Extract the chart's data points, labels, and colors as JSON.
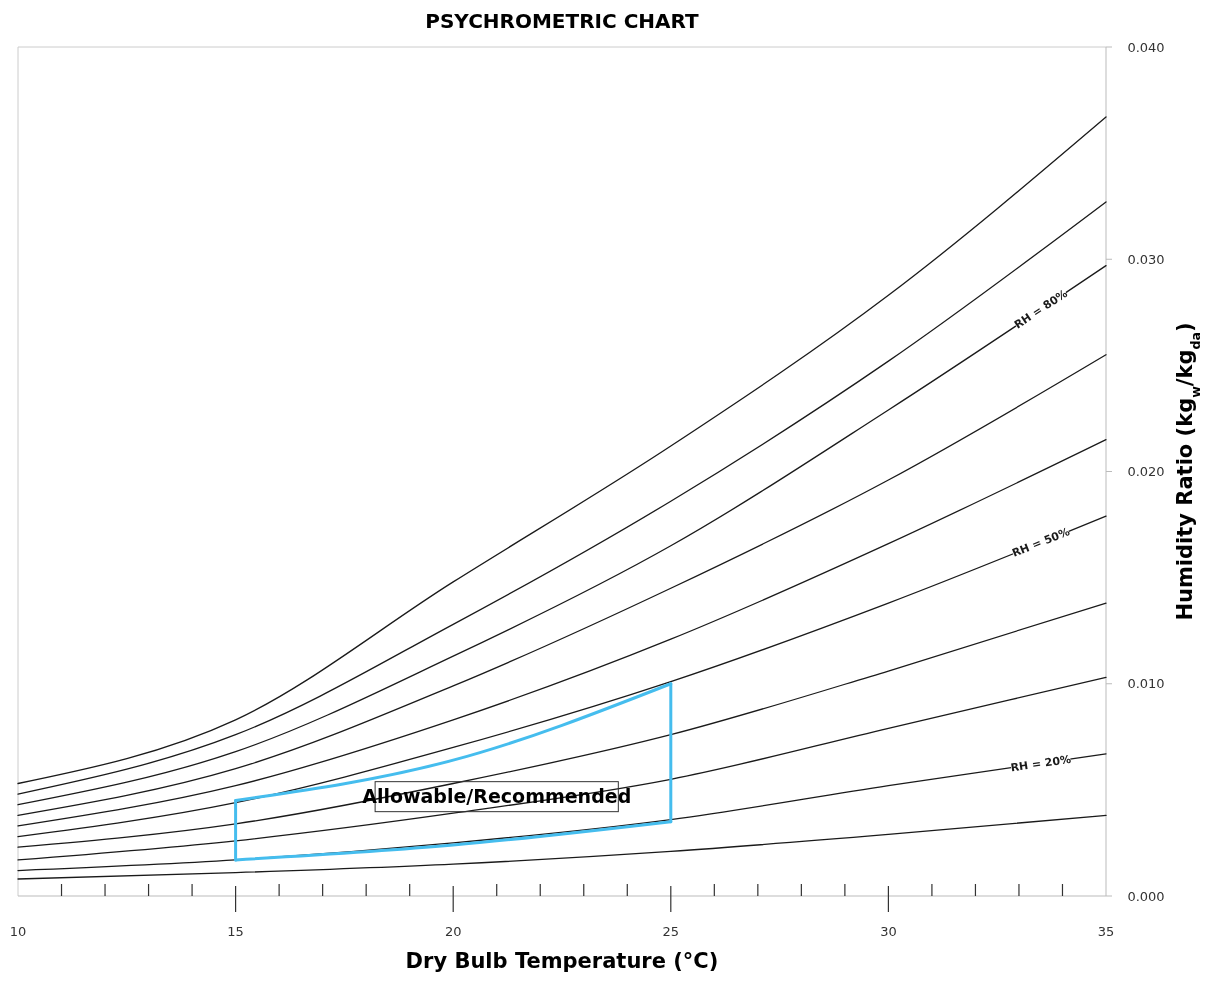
{
  "chart_data": {
    "type": "line",
    "title": "PSYCHROMETRIC  CHART",
    "xlabel": "Dry Bulb Temperature (°C)",
    "ylabel": "Humidity Ratio (kg$_{w}$/kg$_{da}$)",
    "x": [
      10,
      15,
      20,
      25,
      30,
      35
    ],
    "xlim": [
      10,
      35
    ],
    "xticks": [
      10,
      {
        "value": 11,
        "label": null
      },
      {
        "value": 12,
        "label": null
      },
      {
        "value": 13,
        "label": null
      },
      {
        "value": 14,
        "label": null
      },
      15,
      {
        "value": 16,
        "label": null
      },
      {
        "value": 17,
        "label": null
      },
      {
        "value": 18,
        "label": null
      },
      {
        "value": 19,
        "label": null
      },
      20,
      {
        "value": 21,
        "label": null
      },
      {
        "value": 22,
        "label": null
      },
      {
        "value": 23,
        "label": null
      },
      {
        "value": 24,
        "label": null
      },
      25,
      {
        "value": 26,
        "label": null
      },
      {
        "value": 27,
        "label": null
      },
      {
        "value": 28,
        "label": null
      },
      {
        "value": 29,
        "label": null
      },
      30,
      {
        "value": 31,
        "label": null
      },
      {
        "value": 32,
        "label": null
      },
      {
        "value": 33,
        "label": null
      },
      {
        "value": 34,
        "label": null
      },
      35
    ],
    "ylim": [
      0,
      0.04
    ],
    "yticks": [
      {
        "value": 0,
        "label": "0.000"
      },
      {
        "value": 0.01,
        "label": "0.010"
      },
      {
        "value": 0.02,
        "label": "0.020"
      },
      {
        "value": 0.03,
        "label": "0.030"
      },
      {
        "value": 0.04,
        "label": "0.040"
      }
    ],
    "grid": false,
    "marker": "none",
    "line_style": "solid",
    "series": [
      {
        "color": "#1a1a1a",
        "values": [
          0.0008,
          0.0011,
          0.0015,
          0.0021,
          0.0029,
          0.0038
        ]
      },
      {
        "name": "RH = 20%",
        "color": "#1a1a1a",
        "values": [
          0.0012,
          0.0017,
          0.0025,
          0.0036,
          0.0052,
          0.0067
        ]
      },
      {
        "color": "#1a1a1a",
        "values": [
          0.0017,
          0.0026,
          0.0039,
          0.0055,
          0.0079,
          0.0103
        ]
      },
      {
        "color": "#1a1a1a",
        "values": [
          0.0023,
          0.0034,
          0.0053,
          0.0076,
          0.0106,
          0.0138
        ]
      },
      {
        "name": "RH = 50%",
        "color": "#1a1a1a",
        "values": [
          0.0028,
          0.0044,
          0.007,
          0.0101,
          0.0138,
          0.0179
        ]
      },
      {
        "color": "#1a1a1a",
        "values": [
          0.0033,
          0.0052,
          0.0083,
          0.0121,
          0.0166,
          0.0215
        ]
      },
      {
        "color": "#1a1a1a",
        "values": [
          0.0038,
          0.006,
          0.0099,
          0.0145,
          0.0196,
          0.0255
        ]
      },
      {
        "name": "RH = 80%",
        "color": "#1a1a1a",
        "values": [
          0.0043,
          0.0068,
          0.0113,
          0.0165,
          0.0229,
          0.0297
        ]
      },
      {
        "color": "#1a1a1a",
        "values": [
          0.0048,
          0.0076,
          0.0128,
          0.0186,
          0.0252,
          0.0327
        ]
      },
      {
        "color": "#1a1a1a",
        "values": [
          0.0053,
          0.0083,
          0.0148,
          0.0212,
          0.0283,
          0.0367
        ]
      },
      {
        "color": "#45bdee",
        "x": [
          15,
          20,
          25
        ],
        "values": [
          0.0045,
          0.0064,
          0.01
        ]
      },
      {
        "color": "#45bdee",
        "x": [
          15,
          20,
          25
        ],
        "values": [
          0.0017,
          0.0024,
          0.0035
        ]
      }
    ],
    "annotations": [
      "Allowable/Recommended"
    ]
  }
}
